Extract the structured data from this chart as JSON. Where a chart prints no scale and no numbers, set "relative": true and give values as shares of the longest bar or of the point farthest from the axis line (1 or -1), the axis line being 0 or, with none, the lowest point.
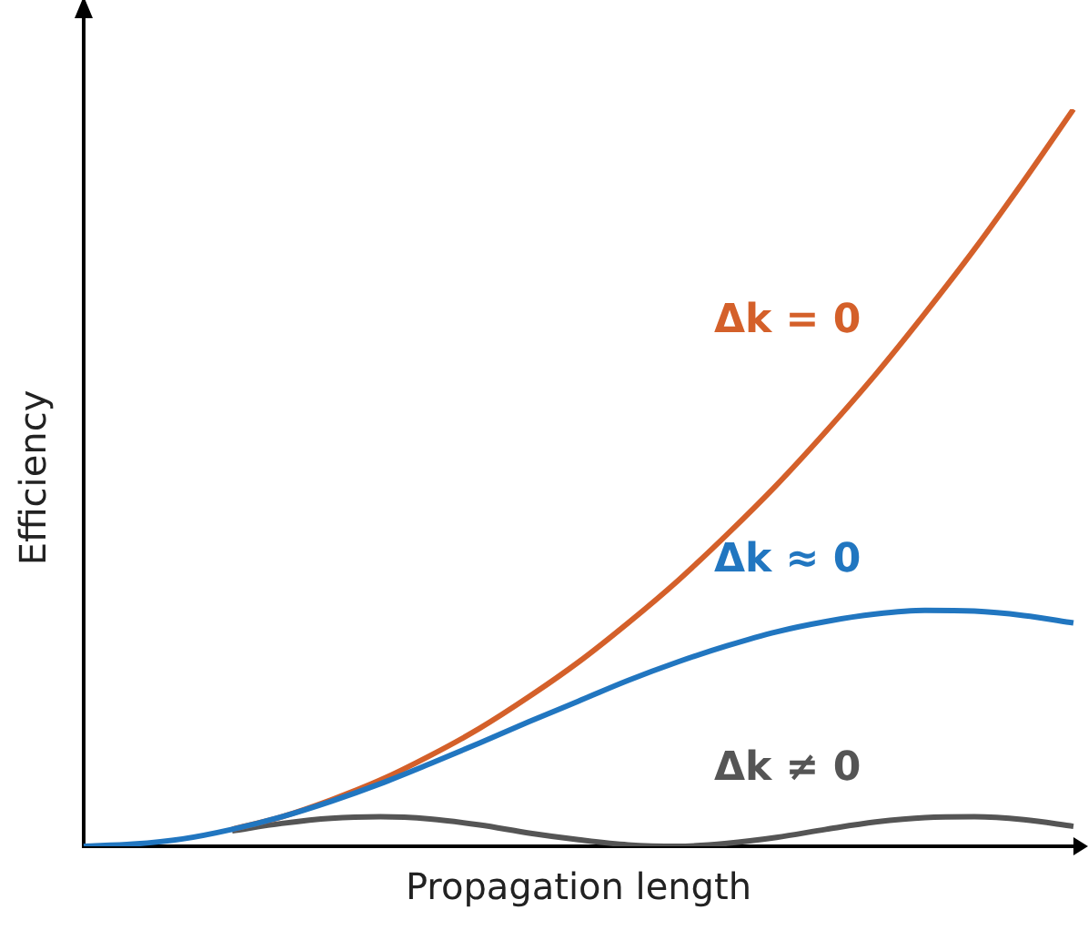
{
  "chart_data": {
    "type": "line",
    "relative": true,
    "xlabel": "Propagation length",
    "ylabel": "Efficiency",
    "marker": "none",
    "grid": false,
    "legend": false,
    "tick_labels": false,
    "categories": [
      null,
      null,
      null,
      null,
      null,
      null,
      null,
      null,
      null,
      null,
      null,
      null,
      null,
      null,
      null,
      null,
      null,
      null,
      null,
      null,
      null
    ],
    "series": [
      {
        "name": "Δk ≈ 0",
        "color": "#2176c0",
        "values": [
          0,
          0.003,
          0.01,
          0.023,
          0.04,
          0.061,
          0.085,
          0.112,
          0.14,
          0.169,
          0.197,
          0.225,
          0.25,
          0.272,
          0.291,
          0.305,
          0.315,
          0.32,
          0.319,
          0.313,
          0.303
        ]
      },
      {
        "name": "Δk = 0",
        "color": "#d4602a",
        "values": [
          null,
          null,
          null,
          0.023,
          0.04,
          0.063,
          0.09,
          0.123,
          0.16,
          0.203,
          0.25,
          0.303,
          0.36,
          0.423,
          0.49,
          0.563,
          0.64,
          0.723,
          0.81,
          0.903,
          1
        ]
      },
      {
        "name": "Δk ≠ 0",
        "color": "#555555",
        "values": [
          null,
          null,
          null,
          0.021,
          0.031,
          0.038,
          0.04,
          0.037,
          0.029,
          0.018,
          0.009,
          0.002,
          0,
          0.004,
          0.012,
          0.023,
          0.033,
          0.039,
          0.04,
          0.036,
          0.027
        ]
      }
    ]
  }
}
